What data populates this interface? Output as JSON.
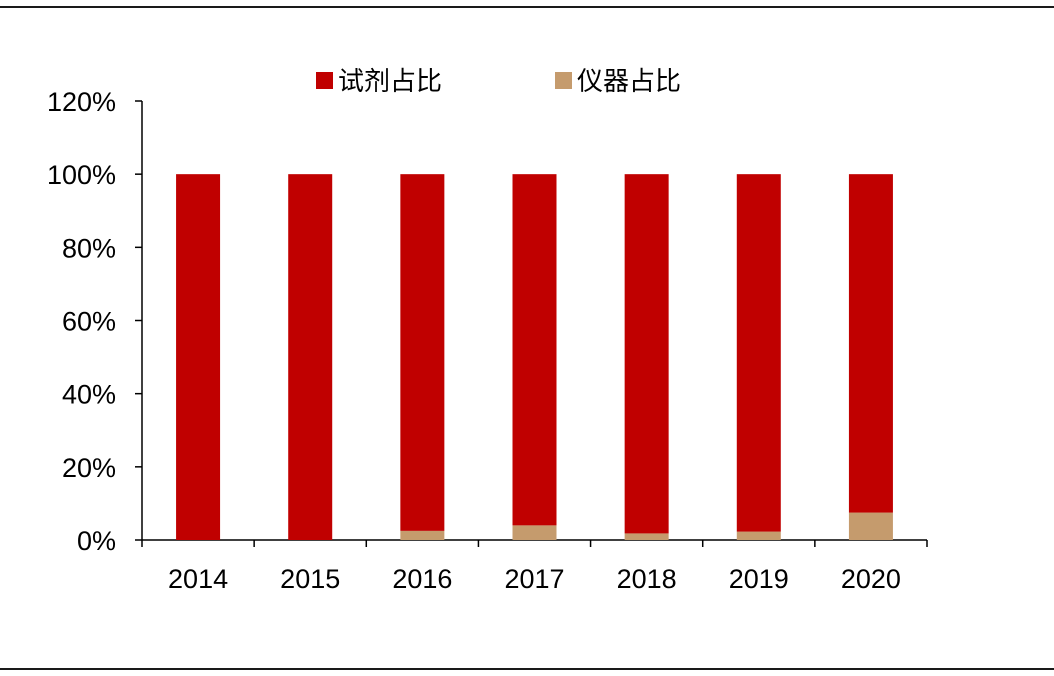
{
  "chart_data": {
    "type": "bar",
    "stacked": true,
    "categories": [
      "2014",
      "2015",
      "2016",
      "2017",
      "2018",
      "2019",
      "2020"
    ],
    "series": [
      {
        "name": "仪器占比",
        "color": "#c59b6d",
        "values": [
          0.0,
          0.0,
          2.5,
          4.0,
          1.8,
          2.3,
          7.5
        ]
      },
      {
        "name": "试剂占比",
        "color": "#c00000",
        "values": [
          100.0,
          100.0,
          97.5,
          96.0,
          98.2,
          97.7,
          92.5
        ]
      }
    ],
    "legend_order": [
      1,
      0
    ],
    "legend_position": "top",
    "yticks": [
      "0%",
      "20%",
      "40%",
      "60%",
      "80%",
      "100%",
      "120%"
    ],
    "ylim": [
      0,
      120
    ],
    "grid": false
  }
}
